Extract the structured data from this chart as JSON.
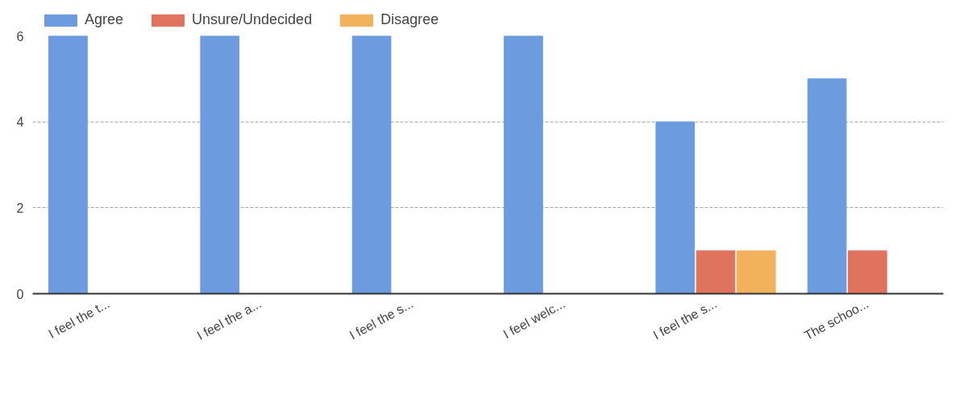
{
  "chart_data": {
    "type": "bar",
    "categories": [
      "I feel the t...",
      "I feel the a...",
      "I feel the s...",
      "I feel welc...",
      "I feel the s...",
      "The schoo..."
    ],
    "series": [
      {
        "name": "Agree",
        "color": "#6d9be0",
        "values": [
          6,
          6,
          6,
          6,
          4,
          5
        ]
      },
      {
        "name": "Unsure/Undecided",
        "color": "#e0735e",
        "values": [
          0,
          0,
          0,
          0,
          1,
          1
        ]
      },
      {
        "name": "Disagree",
        "color": "#f2b25c",
        "values": [
          0,
          0,
          0,
          0,
          1,
          null
        ]
      }
    ],
    "ylim": [
      0,
      6
    ],
    "yticks": [
      0,
      2,
      4,
      6
    ],
    "grid": "y",
    "legend": "top left"
  }
}
